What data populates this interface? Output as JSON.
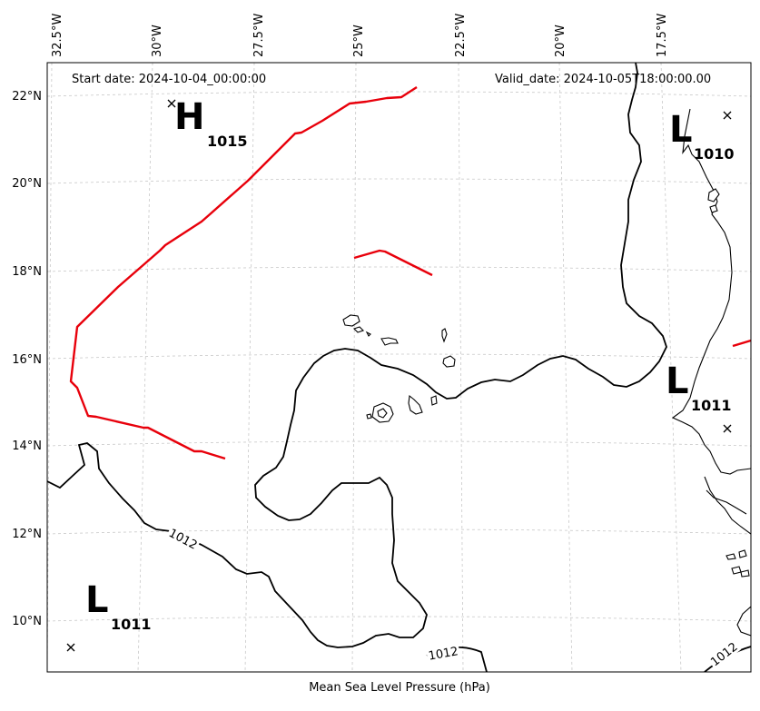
{
  "header": {
    "start_date": "Start date: 2024-10-04_00:00:00",
    "valid_date": "Valid_date: 2024-10-05T18:00:00.00"
  },
  "x_axis_label": "Mean Sea Level Pressure (hPa)",
  "longitude_ticks": [
    "32.5°W",
    "30°W",
    "27.5°W",
    "25°W",
    "22.5°W",
    "20°W",
    "17.5°W"
  ],
  "latitude_ticks": [
    "22°N",
    "20°N",
    "18°N",
    "16°N",
    "14°N",
    "12°N",
    "10°N"
  ],
  "pressure_systems": [
    {
      "type": "H",
      "value": "1015"
    },
    {
      "type": "L",
      "value": "1010"
    },
    {
      "type": "L",
      "value": "1011"
    },
    {
      "type": "L",
      "value": "1011"
    }
  ],
  "contour_labels": [
    "1012",
    "1012",
    "1012"
  ],
  "colors": {
    "front": "#e8000b",
    "isobar": "#000000",
    "grid": "#c8c8c8"
  }
}
